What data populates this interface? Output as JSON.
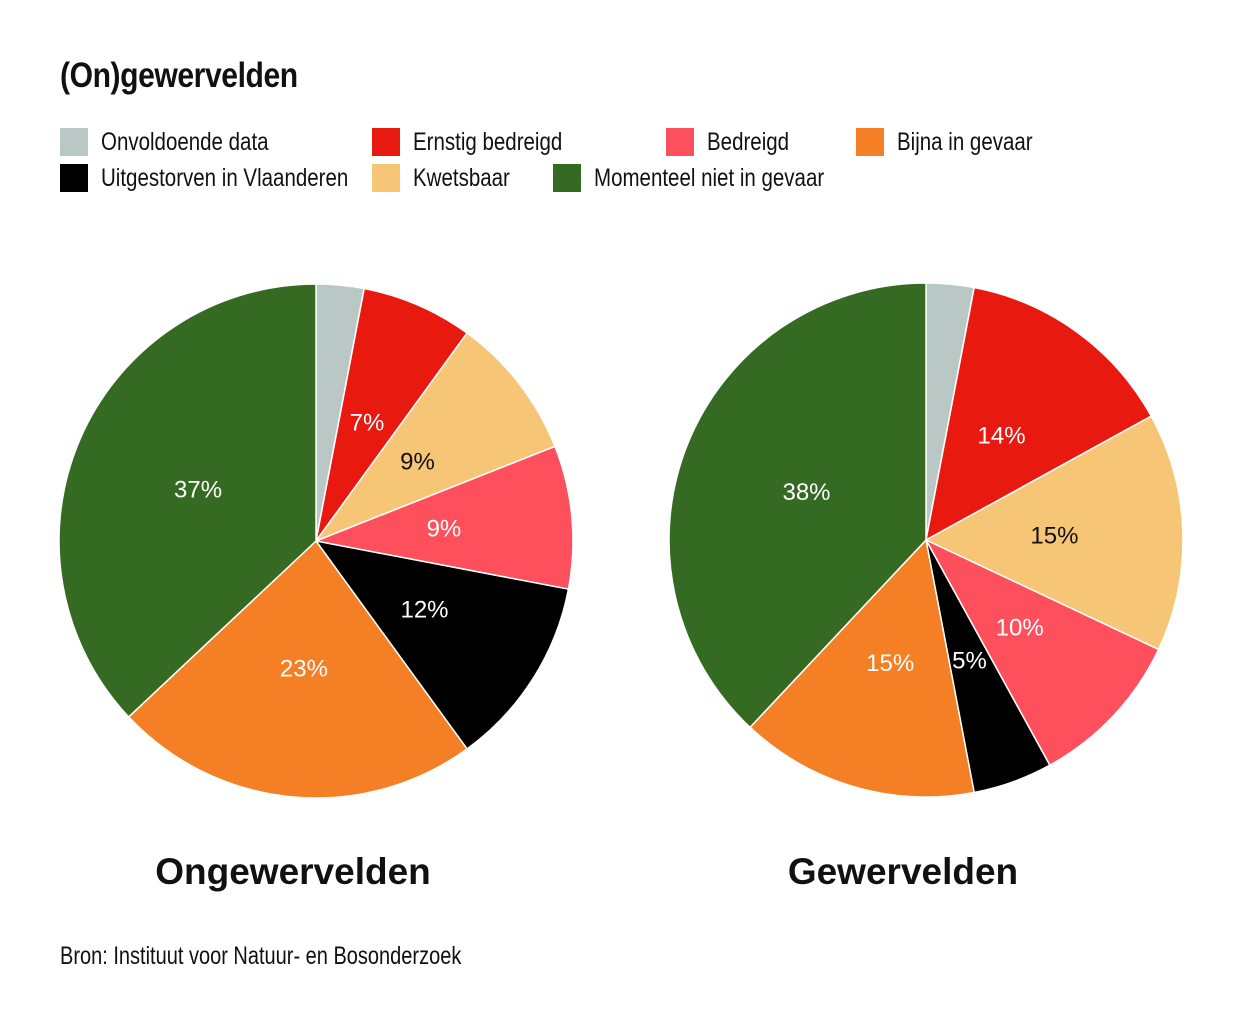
{
  "title": "(On)gewervelden",
  "legend": [
    {
      "label": "Onvoldoende data",
      "color": "#b9c8c5"
    },
    {
      "label": "Ernstig bedreigd",
      "color": "#e8190e"
    },
    {
      "label": "Bedreigd",
      "color": "#fd4f5c"
    },
    {
      "label": "Bijna in gevaar",
      "color": "#f47f24"
    },
    {
      "label": "Uitgestorven in Vlaanderen",
      "color": "#000000"
    },
    {
      "label": "Kwetsbaar",
      "color": "#f7c576"
    },
    {
      "label": "Momenteel niet in gevaar",
      "color": "#356a22"
    }
  ],
  "chart_data": [
    {
      "type": "pie",
      "title": "Ongewervelden",
      "slices": [
        {
          "category": "Onvoldoende data",
          "value": 3,
          "label": "",
          "color": "#b9c8c5",
          "label_color": "#ffffff"
        },
        {
          "category": "Ernstig bedreigd",
          "value": 7,
          "label": "7%",
          "color": "#e8190e",
          "label_color": "#ffffff"
        },
        {
          "category": "Kwetsbaar",
          "value": 9,
          "label": "9%",
          "color": "#f7c576",
          "label_color": "#111111"
        },
        {
          "category": "Bedreigd",
          "value": 9,
          "label": "9%",
          "color": "#fd4f5c",
          "label_color": "#ffffff"
        },
        {
          "category": "Uitgestorven in Vlaanderen",
          "value": 12,
          "label": "12%",
          "color": "#000000",
          "label_color": "#ffffff"
        },
        {
          "category": "Bijna in gevaar",
          "value": 23,
          "label": "23%",
          "color": "#f47f24",
          "label_color": "#ffffff"
        },
        {
          "category": "Momenteel niet in gevaar",
          "value": 37,
          "label": "37%",
          "color": "#356a22",
          "label_color": "#ffffff"
        }
      ]
    },
    {
      "type": "pie",
      "title": "Gewervelden",
      "slices": [
        {
          "category": "Onvoldoende data",
          "value": 3,
          "label": "",
          "color": "#b9c8c5",
          "label_color": "#ffffff"
        },
        {
          "category": "Ernstig bedreigd",
          "value": 14,
          "label": "14%",
          "color": "#e8190e",
          "label_color": "#ffffff"
        },
        {
          "category": "Kwetsbaar",
          "value": 15,
          "label": "15%",
          "color": "#f7c576",
          "label_color": "#111111"
        },
        {
          "category": "Bedreigd",
          "value": 10,
          "label": "10%",
          "color": "#fd4f5c",
          "label_color": "#ffffff"
        },
        {
          "category": "Uitgestorven in Vlaanderen",
          "value": 5,
          "label": "5%",
          "color": "#000000",
          "label_color": "#ffffff"
        },
        {
          "category": "Bijna in gevaar",
          "value": 15,
          "label": "15%",
          "color": "#f47f24",
          "label_color": "#ffffff"
        },
        {
          "category": "Momenteel niet in gevaar",
          "value": 38,
          "label": "38%",
          "color": "#356a22",
          "label_color": "#ffffff"
        }
      ]
    }
  ],
  "source": "Bron: Instituut voor Natuur- en Bosonderzoek"
}
